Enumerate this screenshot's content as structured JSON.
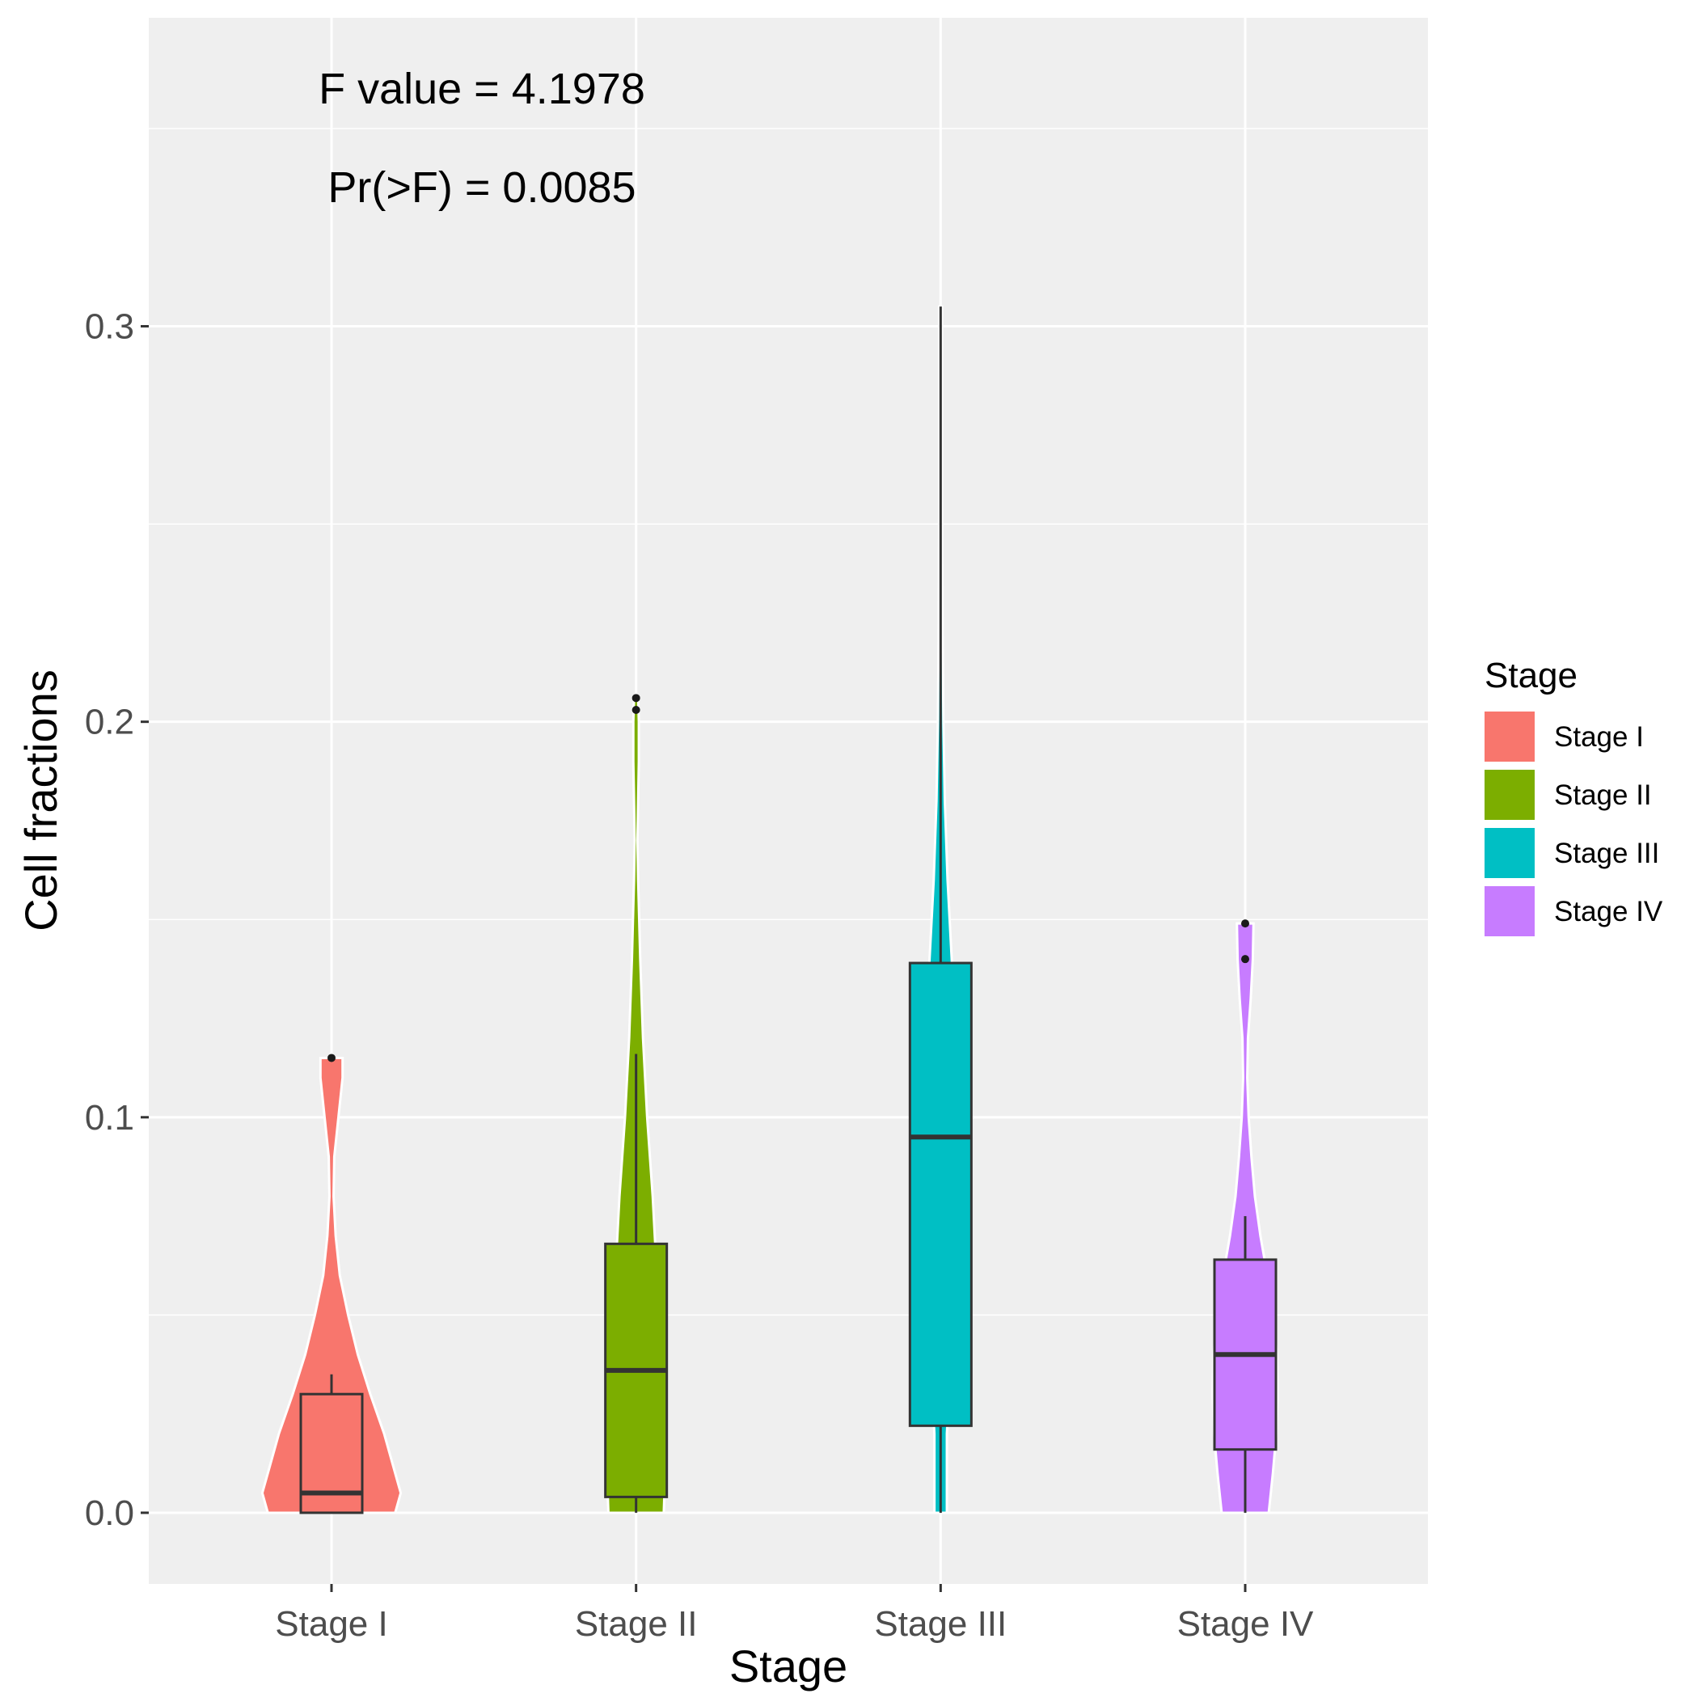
{
  "chart_data": {
    "type": "violin",
    "xlabel": "Stage",
    "ylabel": "Cell fractions",
    "categories": [
      "Stage I",
      "Stage II",
      "Stage III",
      "Stage IV"
    ],
    "ylim": [
      -0.018,
      0.378
    ],
    "y_ticks": [
      0.0,
      0.1,
      0.2,
      0.3
    ],
    "y_tick_labels": [
      "0.0",
      "0.1",
      "0.2",
      "0.3"
    ],
    "grid": true,
    "annotations": [
      {
        "text": "F value =  4.1978"
      },
      {
        "text": "Pr(>F) =  0.0085"
      }
    ],
    "legend": {
      "title": "Stage",
      "position": "right",
      "entries": [
        "Stage I",
        "Stage II",
        "Stage III",
        "Stage IV"
      ]
    },
    "groups": [
      {
        "category": "Stage I",
        "color": "#F8766D",
        "violin": [
          [
            0.0,
            0.46
          ],
          [
            0.005,
            0.5
          ],
          [
            0.01,
            0.46
          ],
          [
            0.02,
            0.38
          ],
          [
            0.03,
            0.28
          ],
          [
            0.04,
            0.19
          ],
          [
            0.05,
            0.12
          ],
          [
            0.06,
            0.06
          ],
          [
            0.07,
            0.03
          ],
          [
            0.08,
            0.015
          ],
          [
            0.09,
            0.02
          ],
          [
            0.1,
            0.05
          ],
          [
            0.11,
            0.08
          ],
          [
            0.115,
            0.08
          ]
        ],
        "box": {
          "q1": 0.0,
          "median": 0.005,
          "q3": 0.03,
          "whisker_low": 0.0,
          "whisker_high": 0.035
        },
        "outliers": [
          0.115
        ]
      },
      {
        "category": "Stage II",
        "color": "#7CAE00",
        "violin": [
          [
            0.0,
            0.2
          ],
          [
            0.01,
            0.21
          ],
          [
            0.02,
            0.2
          ],
          [
            0.04,
            0.18
          ],
          [
            0.06,
            0.15
          ],
          [
            0.08,
            0.12
          ],
          [
            0.1,
            0.08
          ],
          [
            0.12,
            0.05
          ],
          [
            0.14,
            0.03
          ],
          [
            0.16,
            0.015
          ],
          [
            0.17,
            0.01
          ],
          [
            0.18,
            0.015
          ],
          [
            0.19,
            0.02
          ],
          [
            0.2,
            0.02
          ],
          [
            0.206,
            0.015
          ]
        ],
        "box": {
          "q1": 0.004,
          "median": 0.036,
          "q3": 0.068,
          "whisker_low": 0.0,
          "whisker_high": 0.116
        },
        "outliers": [
          0.203,
          0.206
        ]
      },
      {
        "category": "Stage III",
        "color": "#00BFC4",
        "violin": [
          [
            0.0,
            0.045
          ],
          [
            0.02,
            0.045
          ],
          [
            0.04,
            0.075
          ],
          [
            0.06,
            0.1
          ],
          [
            0.08,
            0.11
          ],
          [
            0.1,
            0.11
          ],
          [
            0.12,
            0.1
          ],
          [
            0.14,
            0.08
          ],
          [
            0.16,
            0.05
          ],
          [
            0.18,
            0.03
          ],
          [
            0.2,
            0.02
          ],
          [
            0.22,
            0.015
          ],
          [
            0.24,
            0.012
          ],
          [
            0.26,
            0.01
          ],
          [
            0.28,
            0.01
          ],
          [
            0.305,
            0.01
          ]
        ],
        "box": {
          "q1": 0.022,
          "median": 0.095,
          "q3": 0.139,
          "whisker_low": 0.0,
          "whisker_high": 0.305
        },
        "outliers": []
      },
      {
        "category": "Stage IV",
        "color": "#C77CFF",
        "violin": [
          [
            0.0,
            0.17
          ],
          [
            0.01,
            0.2
          ],
          [
            0.02,
            0.225
          ],
          [
            0.03,
            0.235
          ],
          [
            0.04,
            0.23
          ],
          [
            0.05,
            0.2
          ],
          [
            0.06,
            0.16
          ],
          [
            0.07,
            0.11
          ],
          [
            0.08,
            0.07
          ],
          [
            0.09,
            0.045
          ],
          [
            0.1,
            0.025
          ],
          [
            0.11,
            0.015
          ],
          [
            0.12,
            0.02
          ],
          [
            0.13,
            0.04
          ],
          [
            0.14,
            0.055
          ],
          [
            0.149,
            0.06
          ]
        ],
        "box": {
          "q1": 0.016,
          "median": 0.04,
          "q3": 0.064,
          "whisker_low": 0.0,
          "whisker_high": 0.075
        },
        "outliers": [
          0.14,
          0.149
        ]
      }
    ]
  }
}
